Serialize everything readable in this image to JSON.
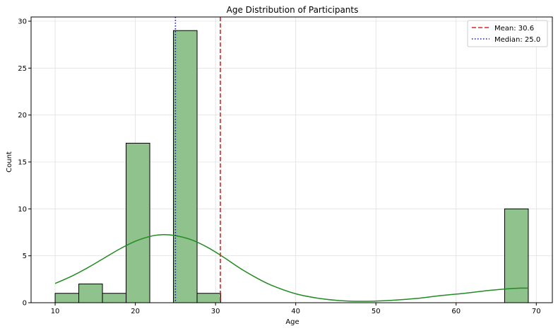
{
  "chart_data": {
    "type": "bar",
    "title": "Age Distribution of Participants",
    "xlabel": "Age",
    "ylabel": "Count",
    "xlim": [
      7,
      72
    ],
    "ylim": [
      0,
      30.45
    ],
    "xticks": [
      10,
      20,
      30,
      40,
      50,
      60,
      70
    ],
    "yticks": [
      0,
      5,
      10,
      15,
      20,
      25,
      30
    ],
    "grid": true,
    "bins": [
      {
        "x0": 10.0,
        "x1": 12.95,
        "count": 1
      },
      {
        "x0": 12.95,
        "x1": 15.9,
        "count": 2
      },
      {
        "x0": 15.9,
        "x1": 18.85,
        "count": 1
      },
      {
        "x0": 18.85,
        "x1": 21.8,
        "count": 17
      },
      {
        "x0": 21.8,
        "x1": 24.75,
        "count": 0
      },
      {
        "x0": 24.75,
        "x1": 27.7,
        "count": 29
      },
      {
        "x0": 27.7,
        "x1": 30.65,
        "count": 1
      },
      {
        "x0": 30.65,
        "x1": 33.6,
        "count": 0
      },
      {
        "x0": 33.6,
        "x1": 36.55,
        "count": 0
      },
      {
        "x0": 36.55,
        "x1": 39.5,
        "count": 0
      },
      {
        "x0": 39.5,
        "x1": 42.45,
        "count": 0
      },
      {
        "x0": 42.45,
        "x1": 45.4,
        "count": 0
      },
      {
        "x0": 45.4,
        "x1": 48.35,
        "count": 0
      },
      {
        "x0": 48.35,
        "x1": 51.3,
        "count": 0
      },
      {
        "x0": 51.3,
        "x1": 54.25,
        "count": 0
      },
      {
        "x0": 54.25,
        "x1": 57.2,
        "count": 0
      },
      {
        "x0": 57.2,
        "x1": 60.15,
        "count": 0
      },
      {
        "x0": 60.15,
        "x1": 63.1,
        "count": 0
      },
      {
        "x0": 63.1,
        "x1": 66.05,
        "count": 0
      },
      {
        "x0": 66.05,
        "x1": 69.0,
        "count": 10
      }
    ],
    "kde": {
      "x": [
        10,
        12,
        14,
        16,
        18,
        20,
        22,
        23.5,
        25,
        27,
        29,
        31,
        33,
        35,
        37,
        40,
        43,
        46,
        49,
        52,
        55,
        58,
        61,
        64,
        66,
        68,
        69
      ],
      "y": [
        2.05,
        2.8,
        3.7,
        4.7,
        5.7,
        6.55,
        7.1,
        7.25,
        7.15,
        6.7,
        5.9,
        4.85,
        3.7,
        2.7,
        1.85,
        0.95,
        0.45,
        0.2,
        0.15,
        0.25,
        0.45,
        0.75,
        1.0,
        1.3,
        1.45,
        1.55,
        1.55
      ]
    },
    "reference_lines": [
      {
        "label": "Mean: 30.6",
        "value": 30.6,
        "style": "dashed",
        "color": "#d62728"
      },
      {
        "label": "Median: 25.0",
        "value": 25.0,
        "style": "dotted",
        "color": "#1a1a8c"
      }
    ],
    "legend_position": "top-right",
    "colors": {
      "bar_fill": "#8fc28c",
      "bar_edge": "#000000",
      "kde_line": "#228b22",
      "grid": "#e0e0e0"
    }
  }
}
